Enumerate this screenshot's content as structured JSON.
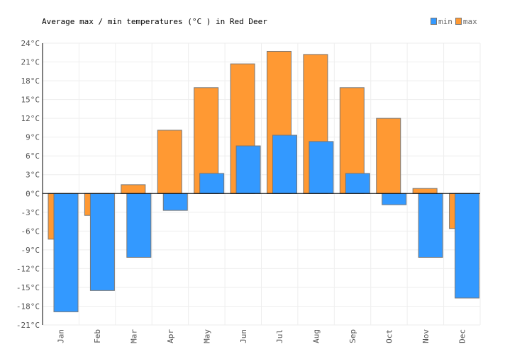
{
  "chart_data": {
    "type": "bar",
    "title": "Average max / min temperatures (°C ) in Red Deer",
    "categories": [
      "Jan",
      "Feb",
      "Mar",
      "Apr",
      "May",
      "Jun",
      "Jul",
      "Aug",
      "Sep",
      "Oct",
      "Nov",
      "Dec"
    ],
    "series": [
      {
        "name": "min",
        "color": "#3399ff",
        "values": [
          -18.9,
          -15.5,
          -10.2,
          -2.7,
          3.2,
          7.6,
          9.3,
          8.3,
          3.2,
          -1.8,
          -10.2,
          -16.7
        ]
      },
      {
        "name": "max",
        "color": "#ff9933",
        "values": [
          -7.3,
          -3.5,
          1.4,
          10.1,
          16.9,
          20.7,
          22.7,
          22.2,
          16.9,
          12.0,
          0.8,
          -5.6
        ]
      }
    ],
    "ylim": [
      -21,
      24
    ],
    "yticks": [
      "24°C",
      "21°C",
      "18°C",
      "15°C",
      "12°C",
      "9°C",
      "6°C",
      "3°C",
      "0°C",
      "-3°C",
      "-6°C",
      "-9°C",
      "-12°C",
      "-15°C",
      "-18°C",
      "-21°C"
    ],
    "grid": true,
    "legend": "top-right"
  }
}
